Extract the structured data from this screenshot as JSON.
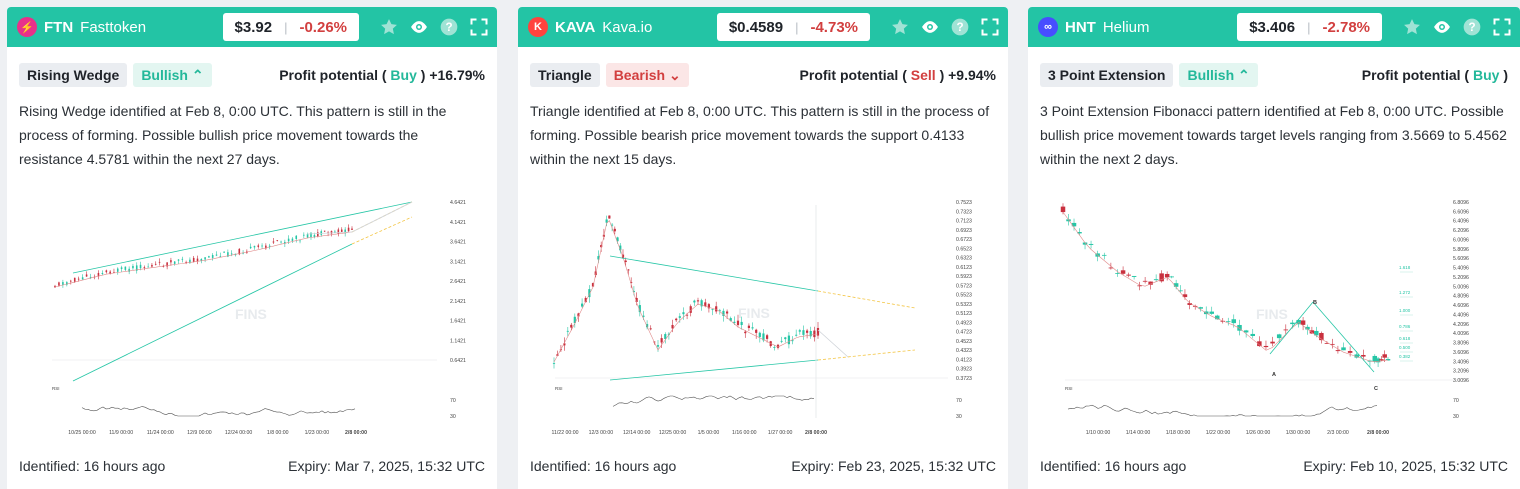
{
  "cards": [
    {
      "symbol": "FTN",
      "name": "Fasttoken",
      "logo_color": "#e8308a",
      "logo_glyph": "⚡",
      "price": "$3.92",
      "change": "-0.26%",
      "pattern": "Rising Wedge",
      "direction": "Bullish",
      "direction_icon": "chevrons-up-icon",
      "profit_label": "Profit potential (",
      "profit_action": "Buy",
      "profit_close": ")",
      "profit_value": "+16.79%",
      "description": "Rising Wedge identified at Feb 8, 0:00 UTC. This pattern is still in the process of forming. Possible bullish price movement towards the resistance 4.5781 within the next 27 days.",
      "identified": "Identified: 16 hours ago",
      "expiry": "Expiry: Mar 7, 2025, 15:32 UTC",
      "chart_data": {
        "type": "candlestick",
        "y_ticks": [
          "4.6421",
          "4.1421",
          "3.6421",
          "3.1421",
          "2.6421",
          "2.1421",
          "1.6421",
          "1.1421",
          "0.6421"
        ],
        "x_ticks": [
          "10/25 00:00",
          "11/9 00:00",
          "11/24 00:00",
          "12/9 00:00",
          "12/24 00:00",
          "1/8 00:00",
          "1/23 00:00",
          "2/8 00:00"
        ],
        "rsi_ticks": [
          "70",
          "30"
        ],
        "rsi_label": "RSI",
        "watermark": "FINS"
      }
    },
    {
      "symbol": "KAVA",
      "name": "Kava.io",
      "logo_color": "#ff433e",
      "logo_glyph": "K",
      "price": "$0.4589",
      "change": "-4.73%",
      "pattern": "Triangle",
      "direction": "Bearish",
      "direction_icon": "chevrons-down-icon",
      "profit_label": "Profit potential (",
      "profit_action": "Sell",
      "profit_close": ")",
      "profit_value": "+9.94%",
      "description": "Triangle identified at Feb 8, 0:00 UTC. This pattern is still in the process of forming. Possible bearish price movement towards the support 0.4133 within the next 15 days.",
      "identified": "Identified: 16 hours ago",
      "expiry": "Expiry: Feb 23, 2025, 15:32 UTC",
      "chart_data": {
        "type": "candlestick",
        "y_ticks": [
          "0.7523",
          "0.7323",
          "0.7123",
          "0.6923",
          "0.6723",
          "0.6523",
          "0.6323",
          "0.6123",
          "0.5923",
          "0.5723",
          "0.5523",
          "0.5323",
          "0.5123",
          "0.4923",
          "0.4723",
          "0.4523",
          "0.4323",
          "0.4123",
          "0.3923",
          "0.3723"
        ],
        "x_ticks": [
          "11/22 00:00",
          "12/3 00:00",
          "12/14 00:00",
          "12/25 00:00",
          "1/5 00:00",
          "1/16 00:00",
          "1/27 00:00",
          "2/8 00:00"
        ],
        "rsi_ticks": [
          "70",
          "30"
        ],
        "rsi_label": "RSI",
        "watermark": "FINS"
      }
    },
    {
      "symbol": "HNT",
      "name": "Helium",
      "logo_color": "#474dff",
      "logo_glyph": "∞",
      "price": "$3.406",
      "change": "-2.78%",
      "pattern": "3 Point Extension",
      "direction": "Bullish",
      "direction_icon": "chevrons-up-icon",
      "profit_label": "Profit potential (",
      "profit_action": "Buy",
      "profit_close": ")",
      "profit_value": "",
      "description": "3 Point Extension Fibonacci pattern identified at Feb 8, 0:00 UTC. Possible bullish price movement towards target levels ranging from 3.5669 to 5.4562 within the next 2 days.",
      "identified": "Identified: 16 hours ago",
      "expiry": "Expiry: Feb 10, 2025, 15:32 UTC",
      "chart_data": {
        "type": "candlestick",
        "y_ticks": [
          "6.8096",
          "6.6096",
          "6.4096",
          "6.2096",
          "6.0096",
          "5.8096",
          "5.6096",
          "5.4096",
          "5.2096",
          "5.0096",
          "4.8096",
          "4.6096",
          "4.4096",
          "4.2096",
          "4.0096",
          "3.8096",
          "3.6096",
          "3.4096",
          "3.2096",
          "3.0096"
        ],
        "x_ticks": [
          "1/10 00:00",
          "1/14 00:00",
          "1/18 00:00",
          "1/22 00:00",
          "1/26 00:00",
          "1/30 00:00",
          "2/3 00:00",
          "2/8 00:00"
        ],
        "fib_labels": [
          "1.618",
          "1.272",
          "1.000",
          "0.786",
          "0.618",
          "0.500",
          "0.382"
        ],
        "point_labels": [
          "A",
          "B",
          "C"
        ],
        "rsi_ticks": [
          "70",
          "30"
        ],
        "rsi_label": "RSI",
        "watermark": "FINS"
      }
    }
  ]
}
